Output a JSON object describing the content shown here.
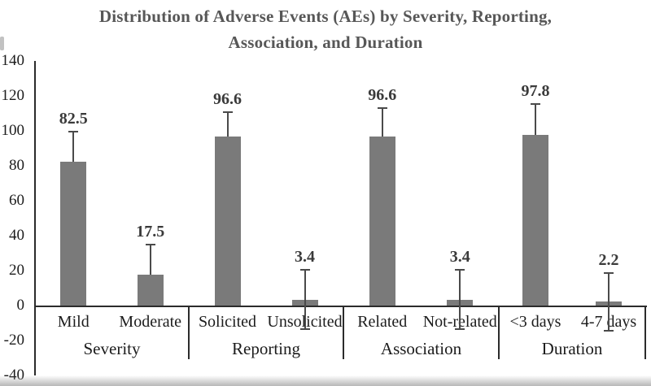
{
  "chart_data": {
    "type": "bar",
    "title": "Distribution of Adverse Events (AEs) by Severity, Reporting, Association, and Duration",
    "title_lines": [
      "Distribution of Adverse Events (AEs) by Severity, Reporting,",
      "Association, and Duration"
    ],
    "xlabel": "",
    "ylabel": "",
    "ylim": [
      -40,
      140
    ],
    "yticks": [
      140,
      120,
      100,
      80,
      60,
      40,
      20,
      0,
      -20,
      -40
    ],
    "grid": false,
    "legend": null,
    "bar_color": "#7a7a7a",
    "axis_color": "#2b2b2b",
    "error_bar_color": "#4a4a4a",
    "title_color": "#575757",
    "label_color": "#1c1c1c",
    "value_label_color": "#3a3a3a",
    "groups": [
      {
        "label": "Severity",
        "bars": [
          {
            "label": "Mild",
            "value": 82.5,
            "error": 17.0
          },
          {
            "label": "Moderate",
            "value": 17.5,
            "error": 17.4
          }
        ]
      },
      {
        "label": "Reporting",
        "bars": [
          {
            "label": "Solicited",
            "value": 96.6,
            "error": 14.0
          },
          {
            "label": "Unsolicited",
            "value": 3.4,
            "error": 17.0
          }
        ]
      },
      {
        "label": "Association",
        "bars": [
          {
            "label": "Related",
            "value": 96.6,
            "error": 16.5
          },
          {
            "label": "Not-related",
            "value": 3.4,
            "error": 17.0
          }
        ]
      },
      {
        "label": "Duration",
        "bars": [
          {
            "label": "<3 days",
            "value": 97.8,
            "error": 17.5
          },
          {
            "label": "4-7 days",
            "value": 2.2,
            "error": 16.5
          }
        ]
      }
    ]
  }
}
